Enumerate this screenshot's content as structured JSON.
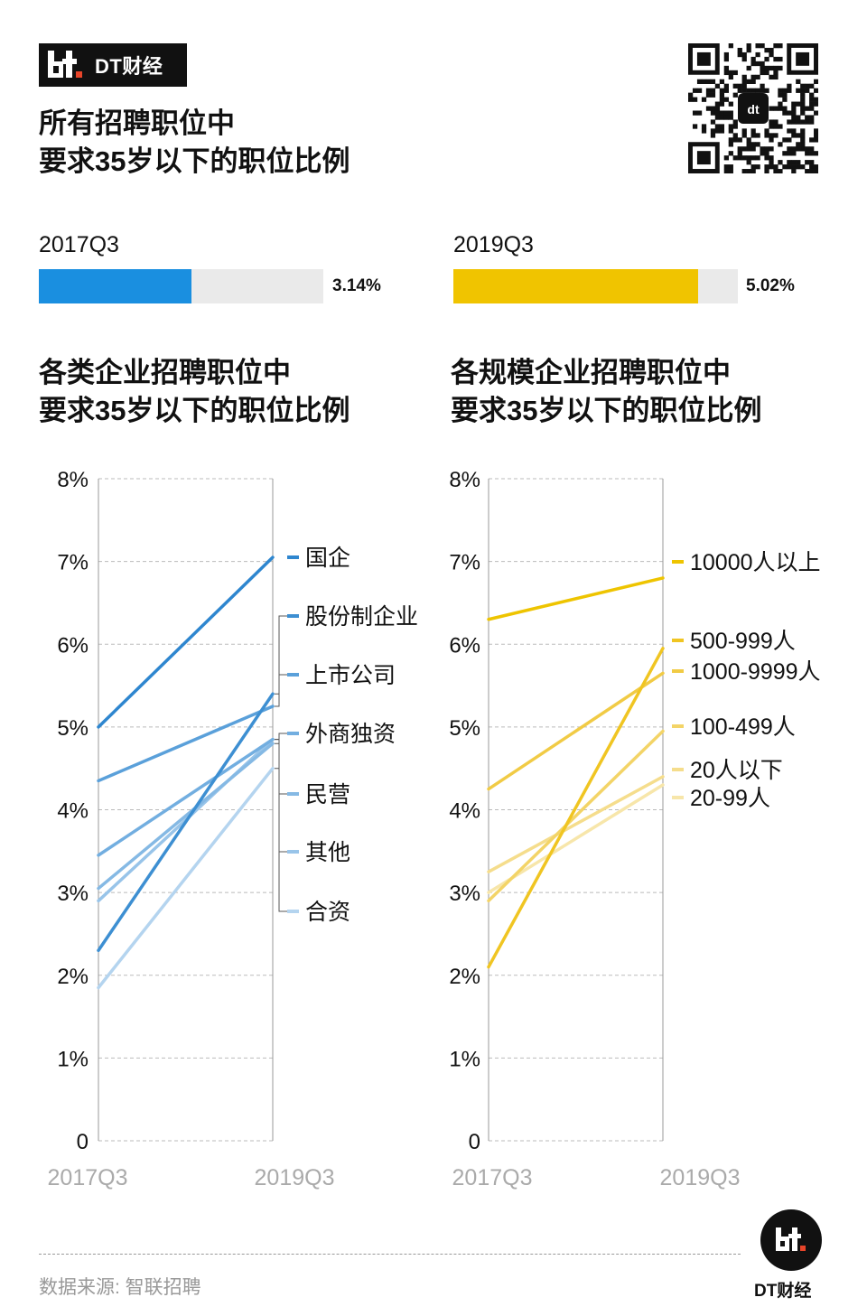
{
  "brand": {
    "name": "DT财经",
    "mark": "dt"
  },
  "main_title": {
    "line1": "所有招聘职位中",
    "line2": "要求35岁以下的职位比例"
  },
  "summary": [
    {
      "period": "2017Q3",
      "value": 3.14,
      "label": "3.14%",
      "color": "#1a8fe0"
    },
    {
      "period": "2019Q3",
      "value": 5.02,
      "label": "5.02%",
      "color": "#f0c400"
    }
  ],
  "chart_data": [
    {
      "type": "line",
      "title": "各类企业招聘职位中\n要求35岁以下的职位比例",
      "title_line1": "各类企业招聘职位中",
      "title_line2": "要求35岁以下的职位比例",
      "x": [
        "2017Q3",
        "2019Q3"
      ],
      "ylim": [
        0,
        8
      ],
      "yticks": [
        "0",
        "1%",
        "2%",
        "3%",
        "4%",
        "5%",
        "6%",
        "7%",
        "8%"
      ],
      "series": [
        {
          "name": "国企",
          "values": [
            5.0,
            7.05
          ],
          "color": "#2e86cf"
        },
        {
          "name": "股份制企业",
          "values": [
            2.3,
            5.4
          ],
          "color": "#3d8fd2"
        },
        {
          "name": "上市公司",
          "values": [
            4.35,
            5.25
          ],
          "color": "#5aa0da"
        },
        {
          "name": "外商独资",
          "values": [
            3.45,
            4.85
          ],
          "color": "#72aee0"
        },
        {
          "name": "民营",
          "values": [
            3.05,
            4.8
          ],
          "color": "#85b9e4"
        },
        {
          "name": "其他",
          "values": [
            2.9,
            4.85
          ],
          "color": "#98c4e9"
        },
        {
          "name": "合资",
          "values": [
            1.85,
            4.5
          ],
          "color": "#b4d4ef"
        }
      ]
    },
    {
      "type": "line",
      "title": "各规模企业招聘职位中\n要求35岁以下的职位比例",
      "title_line1": "各规模企业招聘职位中",
      "title_line2": "要求35岁以下的职位比例",
      "x": [
        "2017Q3",
        "2019Q3"
      ],
      "ylim": [
        0,
        8
      ],
      "yticks": [
        "0",
        "1%",
        "2%",
        "3%",
        "4%",
        "5%",
        "6%",
        "7%",
        "8%"
      ],
      "series": [
        {
          "name": "10000人以上",
          "values": [
            6.3,
            6.8
          ],
          "color": "#eec400"
        },
        {
          "name": "500-999人",
          "values": [
            2.1,
            5.95
          ],
          "color": "#f0c522"
        },
        {
          "name": "1000-9999人",
          "values": [
            4.25,
            5.65
          ],
          "color": "#f1cb45"
        },
        {
          "name": "100-499人",
          "values": [
            2.9,
            4.95
          ],
          "color": "#f3d467"
        },
        {
          "name": "20人以下",
          "values": [
            3.25,
            4.4
          ],
          "color": "#f5dd8c"
        },
        {
          "name": "20-99人",
          "values": [
            3.0,
            4.3
          ],
          "color": "#f7e6aa"
        }
      ]
    }
  ],
  "footer": {
    "source": "数据来源: 智联招聘",
    "brand": "DT财经"
  }
}
